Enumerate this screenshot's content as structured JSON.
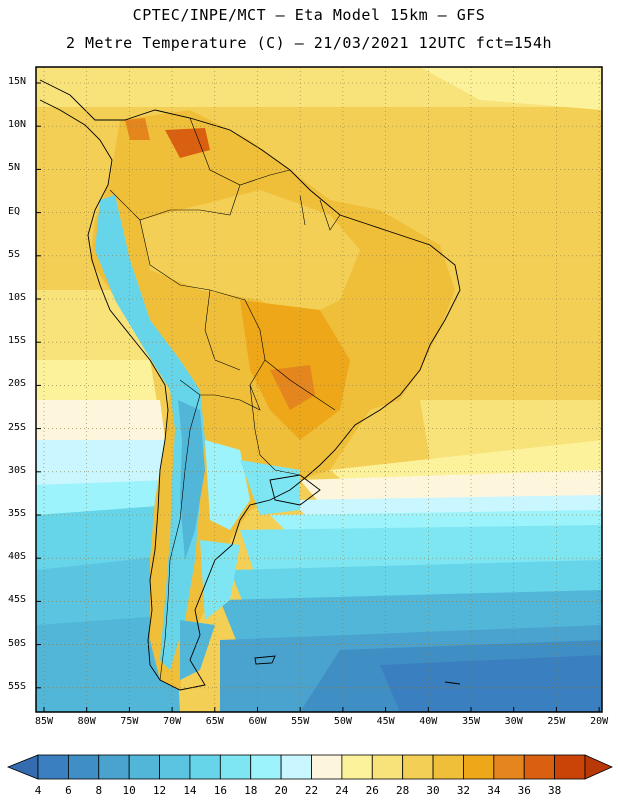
{
  "header": {
    "line1": "CPTEC/INPE/MCT –  Eta Model 15km – GFS",
    "line2": "2 Metre Temperature (C) – 21/03/2021 12UTC fct=154h"
  },
  "map": {
    "lat_labels": [
      "15N",
      "10N",
      "5N",
      "EQ",
      "5S",
      "10S",
      "15S",
      "20S",
      "25S",
      "30S",
      "35S",
      "40S",
      "45S",
      "50S",
      "55S"
    ],
    "lon_labels": [
      "85W",
      "80W",
      "75W",
      "70W",
      "65W",
      "60W",
      "55W",
      "50W",
      "45W",
      "40W",
      "35W",
      "30W",
      "25W",
      "20W"
    ]
  },
  "colorbar": {
    "values": [
      "4",
      "6",
      "8",
      "10",
      "12",
      "14",
      "16",
      "18",
      "20",
      "22",
      "24",
      "26",
      "28",
      "30",
      "32",
      "34",
      "36",
      "38"
    ],
    "colors": [
      "#3a7fbf",
      "#3f8fc5",
      "#4aa3cf",
      "#52b6d9",
      "#5bc5e1",
      "#66d5ea",
      "#7ee6f3",
      "#9df3fb",
      "#c9f6ff",
      "#fdf6dc",
      "#fcf29c",
      "#f8e27a",
      "#f4cf55",
      "#f0bf3a",
      "#eda718",
      "#e4851e",
      "#d96010",
      "#c94406"
    ],
    "under_color": "#356cb0",
    "over_color": "#b83808"
  }
}
